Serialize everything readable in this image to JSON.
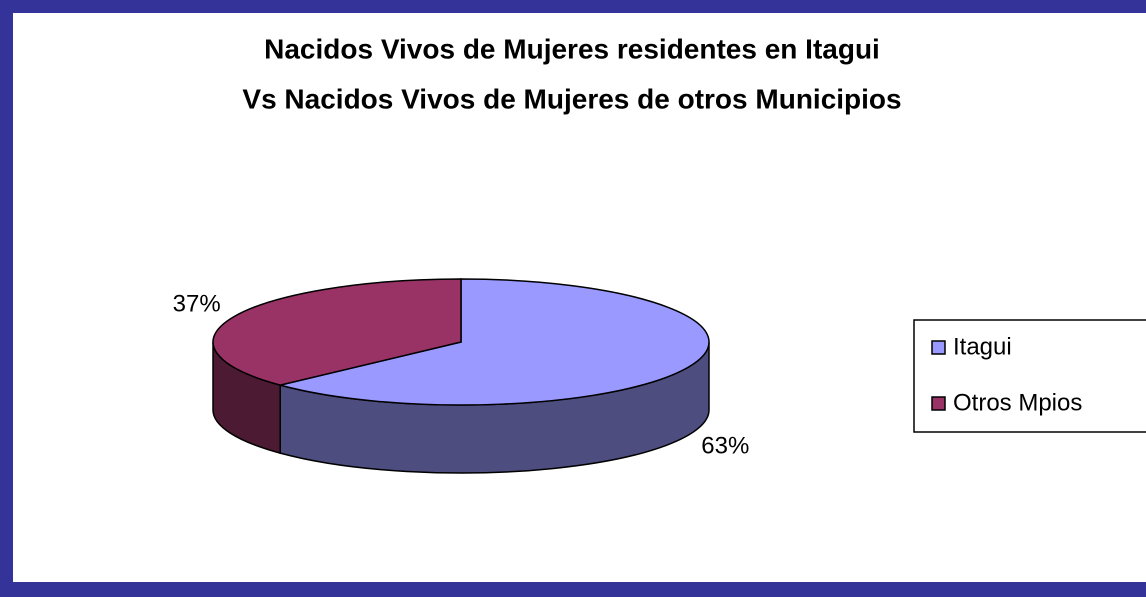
{
  "chart_data": {
    "type": "pie3d",
    "title": [
      "Nacidos Vivos de Mujeres residentes en Itagui",
      "Vs Nacidos Vivos de Mujeres de otros Municipios"
    ],
    "categories": [
      "Itagui",
      "Otros Mpios"
    ],
    "values": [
      63,
      37
    ],
    "value_labels": [
      "63%",
      "37%"
    ],
    "colors": [
      "#9999ff",
      "#993366"
    ],
    "side_colors": [
      "#4d4d80",
      "#4d1a33"
    ],
    "legend": "right"
  }
}
